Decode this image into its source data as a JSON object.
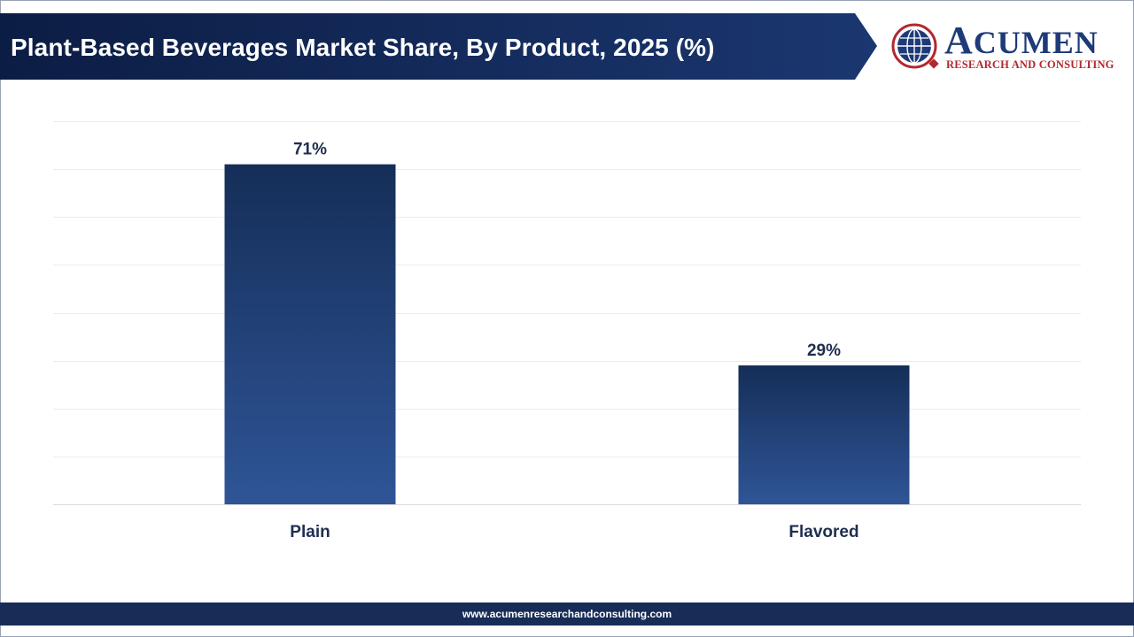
{
  "header": {
    "title": "Plant-Based Beverages Market Share, By Product, 2025 (%)",
    "banner_color": "#0f2350"
  },
  "logo": {
    "name_initial": "A",
    "name_rest": "CUMEN",
    "subtitle": "RESEARCH AND CONSULTING",
    "icon": "globe-icon",
    "brand_color": "#1e3a78",
    "accent_color": "#b2282e"
  },
  "chart_data": {
    "type": "bar",
    "title": "Plant-Based Beverages Market Share, By Product, 2025 (%)",
    "categories": [
      "Plain",
      "Flavored"
    ],
    "values": [
      71,
      29
    ],
    "data_labels": [
      "71%",
      "29%"
    ],
    "ylim": [
      0,
      80
    ],
    "grid": true,
    "legend": "none",
    "bar_color_top": "#152e58",
    "bar_color_bottom": "#2f5597"
  },
  "footer": {
    "url": "www.acumenresearchandconsulting.com"
  }
}
